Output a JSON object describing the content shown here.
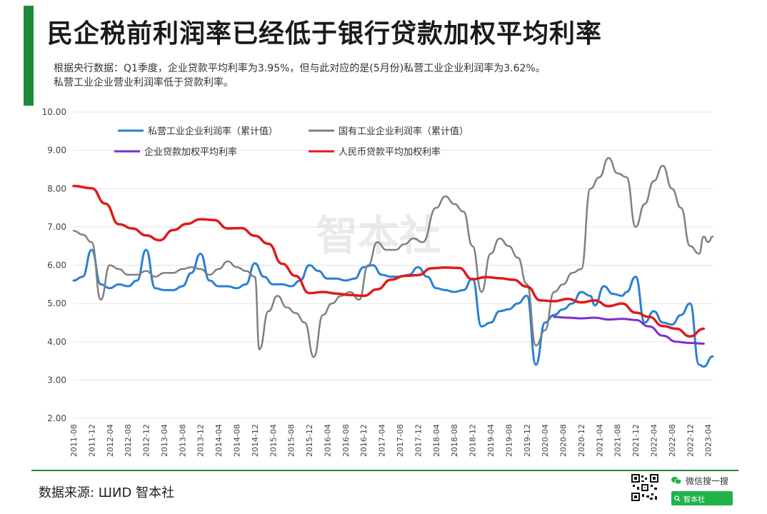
{
  "header": {
    "title": "民企税前利润率已经低于银行贷款加权平均利率",
    "subtitle_line1": "根据央行数据：Q1季度，企业贷款平均利率为3.95%，但与此对应的是(5月份)私营工业企业利润率为3.62%。",
    "subtitle_line2": "私营工业企业营业利润率低于贷款利率。"
  },
  "footer": {
    "source": "数据来源: ШИD  智本社",
    "wechat_label": "微信搜一搜",
    "search_text": "智本社"
  },
  "watermark": "智本社",
  "colors": {
    "accent": "#1e8a3a",
    "private": "#2b7fd4",
    "state": "#808080",
    "corporate_loan": "#7b2fd0",
    "rmb_loan": "#e01b1b",
    "wechat_green": "#1fb34a"
  },
  "chart_data": {
    "type": "line",
    "title": "",
    "xlabel": "",
    "ylabel": "",
    "ylim": [
      2,
      10
    ],
    "y_ticks": [
      "2.00",
      "3.00",
      "4.00",
      "5.00",
      "6.00",
      "7.00",
      "8.00",
      "9.00",
      "10.00"
    ],
    "x_range": [
      "2011-08",
      "2023-05"
    ],
    "x_ticks": [
      "2011-08",
      "2011-12",
      "2012-04",
      "2012-08",
      "2012-12",
      "2013-04",
      "2013-08",
      "2013-12",
      "2014-04",
      "2014-08",
      "2014-12",
      "2015-04",
      "2015-08",
      "2015-12",
      "2016-04",
      "2016-08",
      "2016-12",
      "2017-04",
      "2017-08",
      "2017-12",
      "2018-04",
      "2018-08",
      "2018-12",
      "2019-04",
      "2019-08",
      "2019-12",
      "2020-04",
      "2020-08",
      "2020-12",
      "2021-04",
      "2021-08",
      "2021-12",
      "2022-04",
      "2022-08",
      "2022-12",
      "2023-04"
    ],
    "grid": true,
    "legend_position": "top",
    "series": [
      {
        "name": "私营工业企业利润率（累计值）",
        "color": "#2b7fd4",
        "points": [
          [
            "2011-08",
            5.6
          ],
          [
            "2011-10",
            5.7
          ],
          [
            "2011-12",
            6.4
          ],
          [
            "2012-02",
            5.5
          ],
          [
            "2012-04",
            5.4
          ],
          [
            "2012-06",
            5.5
          ],
          [
            "2012-08",
            5.45
          ],
          [
            "2012-10",
            5.6
          ],
          [
            "2012-12",
            6.4
          ],
          [
            "2013-02",
            5.4
          ],
          [
            "2013-04",
            5.35
          ],
          [
            "2013-06",
            5.35
          ],
          [
            "2013-08",
            5.45
          ],
          [
            "2013-10",
            5.8
          ],
          [
            "2013-12",
            6.3
          ],
          [
            "2014-02",
            5.6
          ],
          [
            "2014-04",
            5.45
          ],
          [
            "2014-06",
            5.45
          ],
          [
            "2014-08",
            5.4
          ],
          [
            "2014-10",
            5.5
          ],
          [
            "2014-12",
            6.05
          ],
          [
            "2015-02",
            5.7
          ],
          [
            "2015-04",
            5.5
          ],
          [
            "2015-06",
            5.5
          ],
          [
            "2015-08",
            5.45
          ],
          [
            "2015-10",
            5.6
          ],
          [
            "2015-12",
            6.0
          ],
          [
            "2016-02",
            5.85
          ],
          [
            "2016-04",
            5.65
          ],
          [
            "2016-06",
            5.65
          ],
          [
            "2016-08",
            5.6
          ],
          [
            "2016-10",
            5.65
          ],
          [
            "2016-12",
            5.95
          ],
          [
            "2017-02",
            6.0
          ],
          [
            "2017-04",
            5.75
          ],
          [
            "2017-06",
            5.7
          ],
          [
            "2017-08",
            5.7
          ],
          [
            "2017-10",
            5.75
          ],
          [
            "2017-12",
            5.95
          ],
          [
            "2018-02",
            5.7
          ],
          [
            "2018-04",
            5.4
          ],
          [
            "2018-06",
            5.35
          ],
          [
            "2018-08",
            5.3
          ],
          [
            "2018-10",
            5.35
          ],
          [
            "2018-12",
            5.65
          ],
          [
            "2019-02",
            4.4
          ],
          [
            "2019-04",
            4.5
          ],
          [
            "2019-06",
            4.8
          ],
          [
            "2019-08",
            4.85
          ],
          [
            "2019-10",
            5.0
          ],
          [
            "2019-12",
            5.2
          ],
          [
            "2020-02",
            3.4
          ],
          [
            "2020-04",
            4.5
          ],
          [
            "2020-06",
            4.7
          ],
          [
            "2020-08",
            4.85
          ],
          [
            "2020-10",
            5.0
          ],
          [
            "2020-12",
            5.3
          ],
          [
            "2021-02",
            5.2
          ],
          [
            "2021-03",
            4.95
          ],
          [
            "2021-05",
            5.45
          ],
          [
            "2021-07",
            5.25
          ],
          [
            "2021-09",
            5.2
          ],
          [
            "2021-10",
            5.3
          ],
          [
            "2021-12",
            5.7
          ],
          [
            "2022-02",
            4.5
          ],
          [
            "2022-04",
            4.8
          ],
          [
            "2022-06",
            4.5
          ],
          [
            "2022-08",
            4.45
          ],
          [
            "2022-10",
            4.7
          ],
          [
            "2022-12",
            5.0
          ],
          [
            "2023-02",
            3.4
          ],
          [
            "2023-03",
            3.35
          ],
          [
            "2023-05",
            3.62
          ]
        ]
      },
      {
        "name": "国有工业企业利润率（累计值）",
        "color": "#808080",
        "points": [
          [
            "2011-08",
            6.9
          ],
          [
            "2011-10",
            6.8
          ],
          [
            "2011-12",
            6.6
          ],
          [
            "2012-02",
            5.1
          ],
          [
            "2012-04",
            6.0
          ],
          [
            "2012-06",
            5.9
          ],
          [
            "2012-08",
            5.75
          ],
          [
            "2012-10",
            5.75
          ],
          [
            "2012-12",
            5.85
          ],
          [
            "2013-02",
            5.7
          ],
          [
            "2013-04",
            5.8
          ],
          [
            "2013-06",
            5.8
          ],
          [
            "2013-08",
            5.9
          ],
          [
            "2013-10",
            5.95
          ],
          [
            "2013-12",
            5.9
          ],
          [
            "2014-02",
            5.75
          ],
          [
            "2014-04",
            5.9
          ],
          [
            "2014-06",
            6.1
          ],
          [
            "2014-08",
            5.95
          ],
          [
            "2014-10",
            5.85
          ],
          [
            "2014-12",
            5.7
          ],
          [
            "2015-01",
            3.8
          ],
          [
            "2015-03",
            4.8
          ],
          [
            "2015-05",
            5.2
          ],
          [
            "2015-07",
            4.9
          ],
          [
            "2015-09",
            4.75
          ],
          [
            "2015-11",
            4.5
          ],
          [
            "2016-01",
            3.6
          ],
          [
            "2016-03",
            4.7
          ],
          [
            "2016-05",
            5.0
          ],
          [
            "2016-07",
            5.2
          ],
          [
            "2016-09",
            5.3
          ],
          [
            "2016-11",
            5.1
          ],
          [
            "2017-01",
            6.0
          ],
          [
            "2017-03",
            6.6
          ],
          [
            "2017-05",
            6.4
          ],
          [
            "2017-07",
            6.4
          ],
          [
            "2017-09",
            6.55
          ],
          [
            "2017-11",
            6.7
          ],
          [
            "2018-01",
            6.6
          ],
          [
            "2018-04",
            7.5
          ],
          [
            "2018-06",
            7.8
          ],
          [
            "2018-08",
            7.6
          ],
          [
            "2018-10",
            7.4
          ],
          [
            "2018-12",
            6.5
          ],
          [
            "2019-02",
            5.3
          ],
          [
            "2019-04",
            6.3
          ],
          [
            "2019-06",
            6.7
          ],
          [
            "2019-08",
            6.5
          ],
          [
            "2019-10",
            6.2
          ],
          [
            "2019-12",
            5.5
          ],
          [
            "2020-02",
            3.9
          ],
          [
            "2020-04",
            4.3
          ],
          [
            "2020-06",
            5.3
          ],
          [
            "2020-08",
            5.5
          ],
          [
            "2020-10",
            5.8
          ],
          [
            "2020-12",
            5.9
          ],
          [
            "2021-02",
            8.0
          ],
          [
            "2021-04",
            8.3
          ],
          [
            "2021-06",
            8.8
          ],
          [
            "2021-08",
            8.4
          ],
          [
            "2021-10",
            8.3
          ],
          [
            "2021-12",
            7.0
          ],
          [
            "2022-02",
            7.6
          ],
          [
            "2022-04",
            8.2
          ],
          [
            "2022-06",
            8.6
          ],
          [
            "2022-08",
            8.0
          ],
          [
            "2022-10",
            7.5
          ],
          [
            "2022-12",
            6.5
          ],
          [
            "2023-02",
            6.3
          ],
          [
            "2023-03",
            6.75
          ],
          [
            "2023-04",
            6.6
          ],
          [
            "2023-05",
            6.75
          ]
        ]
      },
      {
        "name": "企业贷款加权平均利率",
        "color": "#7b2fd0",
        "points": [
          [
            "2020-06",
            4.65
          ],
          [
            "2020-09",
            4.63
          ],
          [
            "2020-12",
            4.61
          ],
          [
            "2021-03",
            4.63
          ],
          [
            "2021-06",
            4.58
          ],
          [
            "2021-09",
            4.6
          ],
          [
            "2021-12",
            4.57
          ],
          [
            "2022-03",
            4.4
          ],
          [
            "2022-06",
            4.16
          ],
          [
            "2022-09",
            4.0
          ],
          [
            "2022-12",
            3.97
          ],
          [
            "2023-03",
            3.95
          ]
        ]
      },
      {
        "name": "人民币贷款平均加权利率",
        "color": "#e01b1b",
        "points": [
          [
            "2011-08",
            8.07
          ],
          [
            "2011-12",
            8.01
          ],
          [
            "2012-03",
            7.61
          ],
          [
            "2012-06",
            7.07
          ],
          [
            "2012-09",
            6.96
          ],
          [
            "2012-12",
            6.78
          ],
          [
            "2013-03",
            6.65
          ],
          [
            "2013-06",
            6.92
          ],
          [
            "2013-09",
            7.08
          ],
          [
            "2013-12",
            7.2
          ],
          [
            "2014-03",
            7.18
          ],
          [
            "2014-06",
            6.96
          ],
          [
            "2014-09",
            6.97
          ],
          [
            "2014-12",
            6.77
          ],
          [
            "2015-03",
            6.56
          ],
          [
            "2015-06",
            6.04
          ],
          [
            "2015-09",
            5.72
          ],
          [
            "2015-12",
            5.27
          ],
          [
            "2016-03",
            5.3
          ],
          [
            "2016-06",
            5.26
          ],
          [
            "2016-09",
            5.22
          ],
          [
            "2016-12",
            5.2
          ],
          [
            "2017-03",
            5.37
          ],
          [
            "2017-06",
            5.62
          ],
          [
            "2017-09",
            5.72
          ],
          [
            "2017-12",
            5.74
          ],
          [
            "2018-03",
            5.92
          ],
          [
            "2018-06",
            5.94
          ],
          [
            "2018-09",
            5.93
          ],
          [
            "2018-12",
            5.63
          ],
          [
            "2019-03",
            5.69
          ],
          [
            "2019-06",
            5.66
          ],
          [
            "2019-09",
            5.62
          ],
          [
            "2019-12",
            5.44
          ],
          [
            "2020-03",
            5.08
          ],
          [
            "2020-06",
            5.06
          ],
          [
            "2020-09",
            5.12
          ],
          [
            "2020-12",
            5.03
          ],
          [
            "2021-03",
            5.08
          ],
          [
            "2021-06",
            4.93
          ],
          [
            "2021-09",
            5.0
          ],
          [
            "2021-12",
            4.76
          ],
          [
            "2022-03",
            4.65
          ],
          [
            "2022-06",
            4.41
          ],
          [
            "2022-09",
            4.34
          ],
          [
            "2022-12",
            4.14
          ],
          [
            "2023-03",
            4.34
          ]
        ]
      }
    ]
  }
}
